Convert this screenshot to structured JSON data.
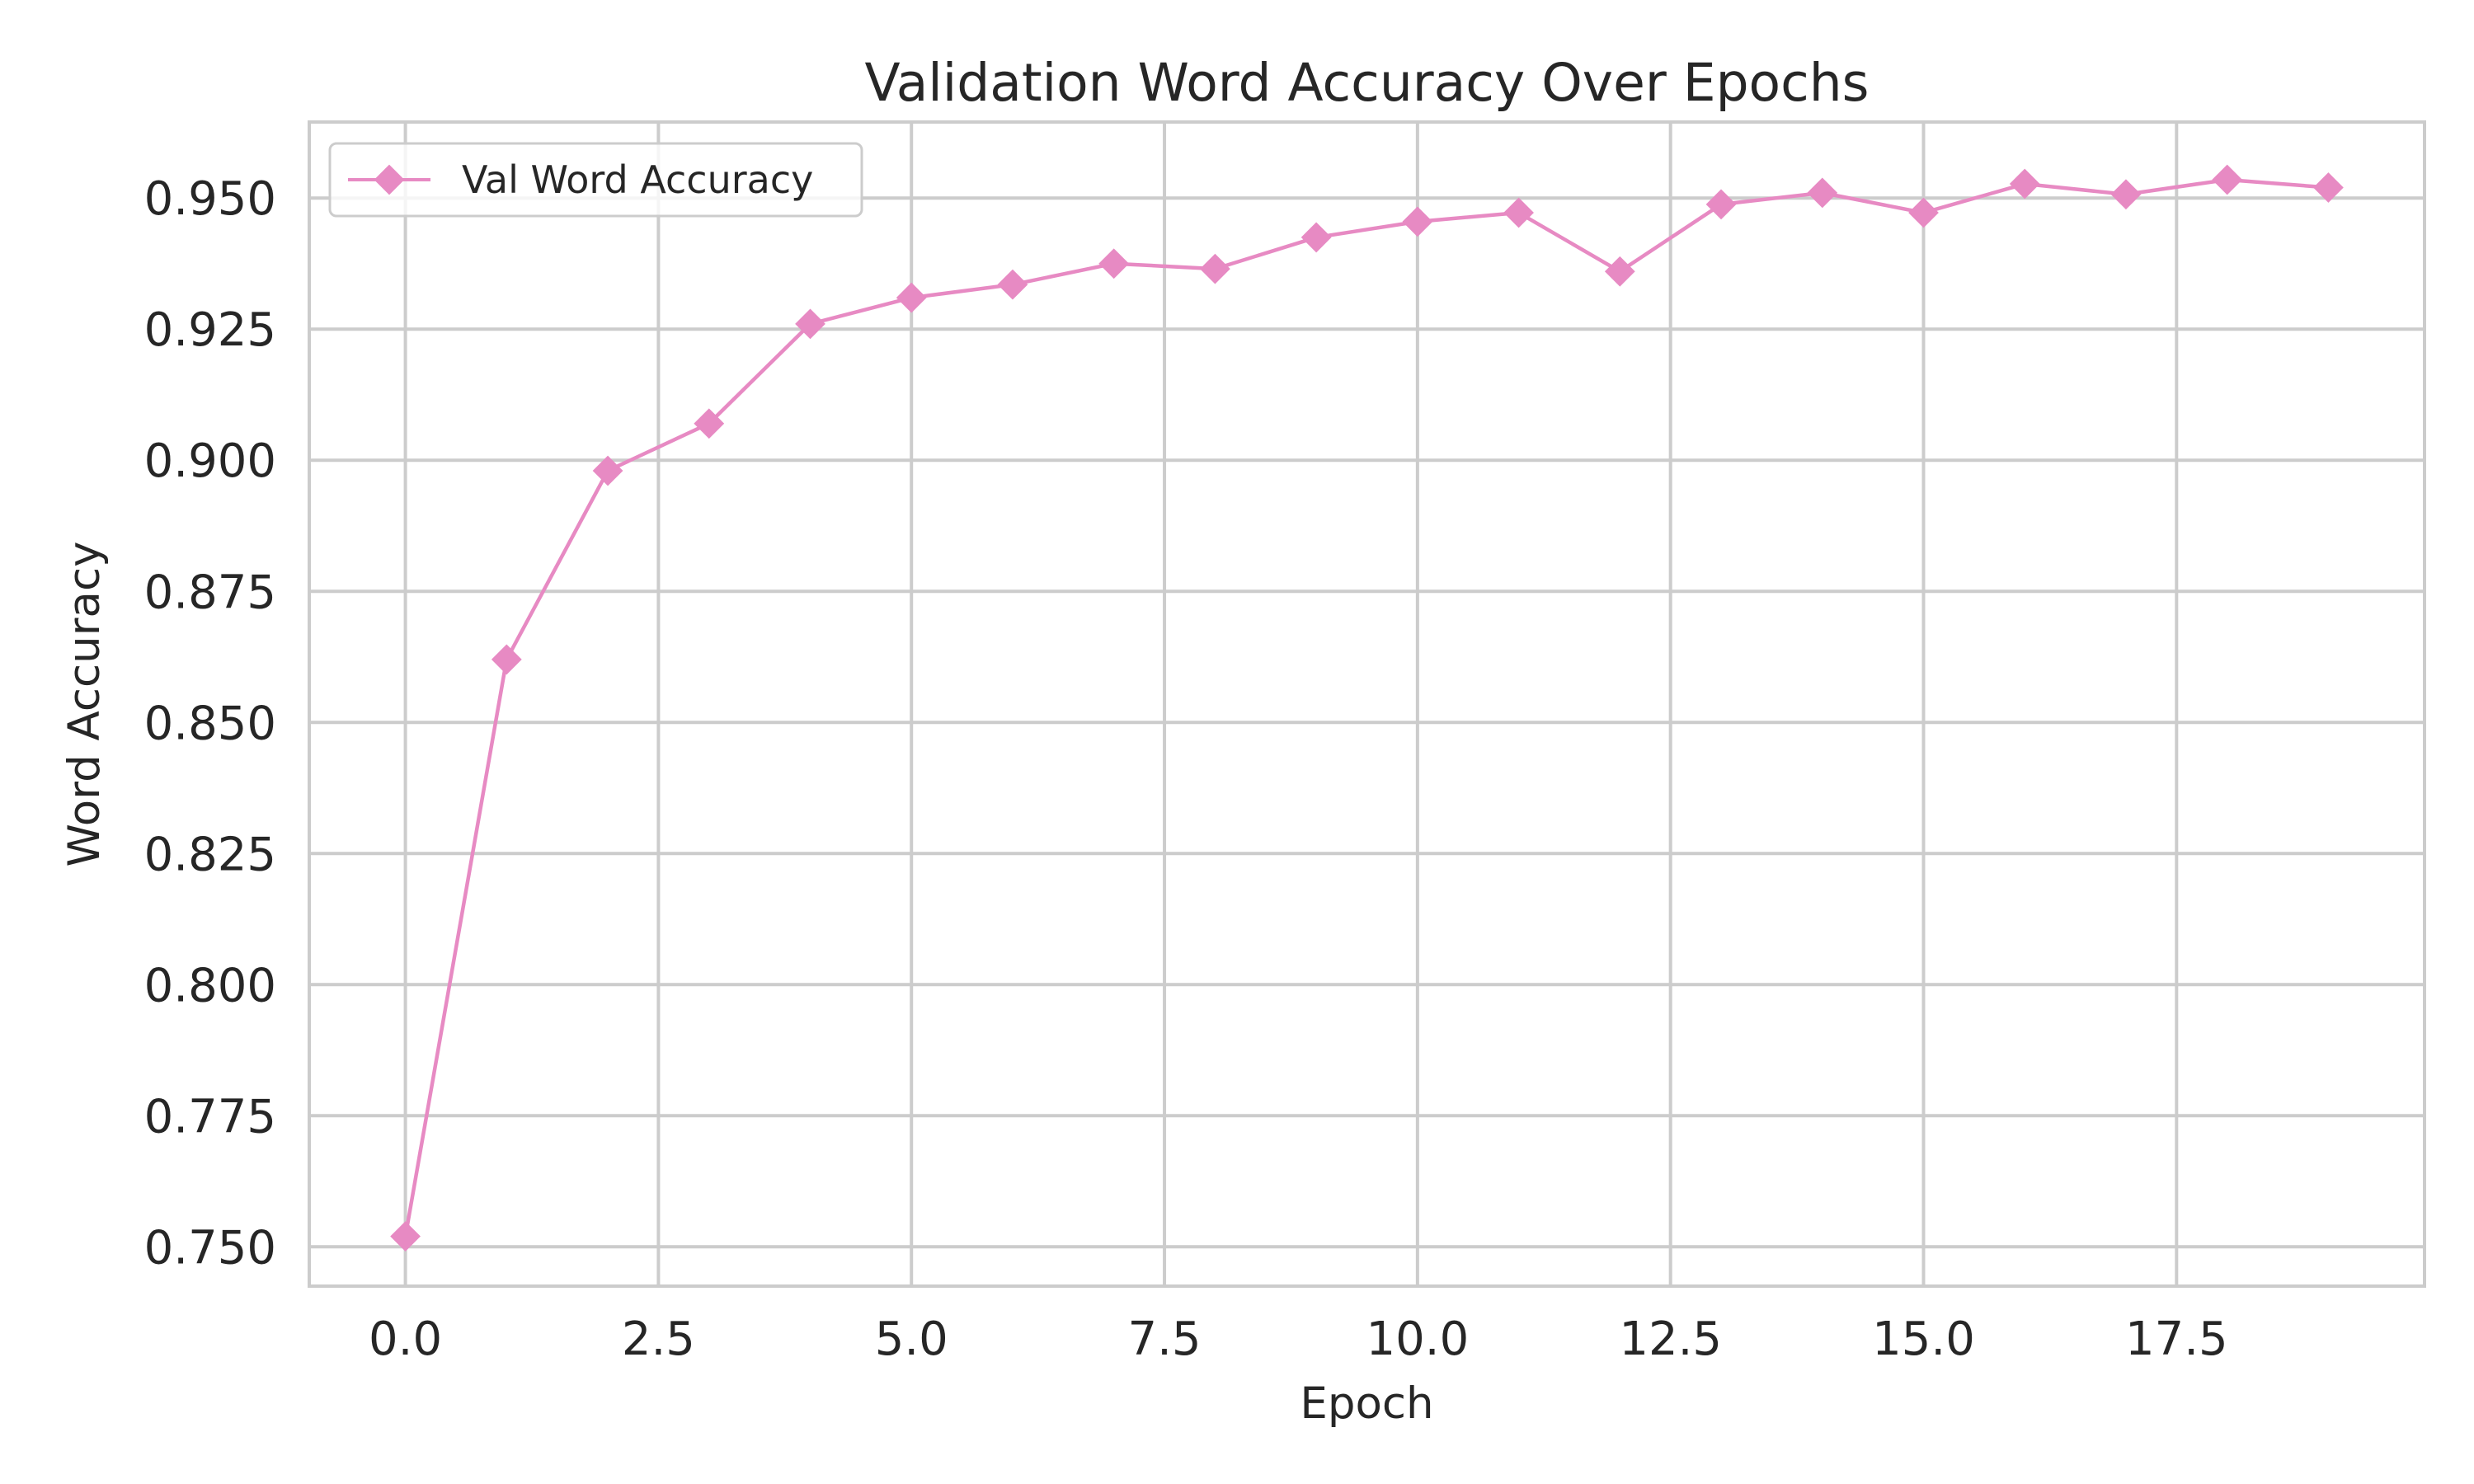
{
  "chart_data": {
    "type": "line",
    "title": "Validation Word Accuracy Over Epochs",
    "xlabel": "Epoch",
    "ylabel": "Word Accuracy",
    "xlim": [
      -0.95,
      19.95
    ],
    "ylim": [
      0.7425,
      0.9645
    ],
    "xticks": [
      0.0,
      2.5,
      5.0,
      7.5,
      10.0,
      12.5,
      15.0,
      17.5
    ],
    "xtick_labels": [
      "0.0",
      "2.5",
      "5.0",
      "7.5",
      "10.0",
      "12.5",
      "15.0",
      "17.5"
    ],
    "yticks": [
      0.75,
      0.775,
      0.8,
      0.825,
      0.85,
      0.875,
      0.9,
      0.925,
      0.95
    ],
    "ytick_labels": [
      "0.750",
      "0.775",
      "0.800",
      "0.825",
      "0.850",
      "0.875",
      "0.900",
      "0.925",
      "0.950"
    ],
    "grid": true,
    "legend_position": "top-left",
    "series": [
      {
        "name": "Val Word Accuracy",
        "color": "#e78ac3",
        "marker": "diamond",
        "x": [
          0,
          1,
          2,
          3,
          4,
          5,
          6,
          7,
          8,
          9,
          10,
          11,
          12,
          13,
          14,
          15,
          16,
          17,
          18,
          19
        ],
        "y": [
          0.752,
          0.862,
          0.898,
          0.907,
          0.926,
          0.931,
          0.9335,
          0.9375,
          0.9365,
          0.9425,
          0.9455,
          0.9472,
          0.936,
          0.9488,
          0.951,
          0.9472,
          0.9527,
          0.9507,
          0.9535,
          0.952
        ]
      }
    ]
  }
}
